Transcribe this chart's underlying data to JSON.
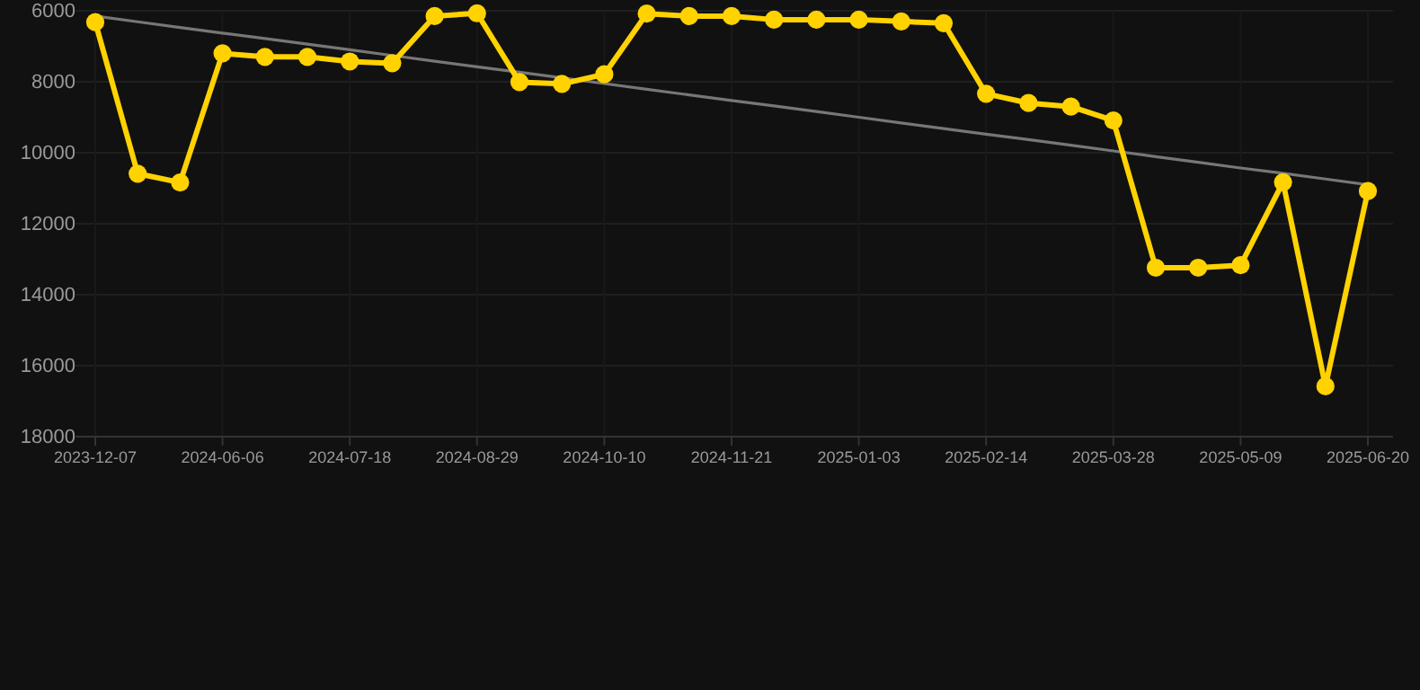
{
  "chart_data": {
    "type": "line",
    "categories": [
      "2023-12-07",
      null,
      null,
      "2024-06-06",
      null,
      null,
      "2024-07-18",
      null,
      null,
      "2024-08-29",
      null,
      null,
      "2024-10-10",
      null,
      null,
      "2024-11-21",
      null,
      null,
      "2025-01-03",
      null,
      null,
      "2025-02-14",
      null,
      null,
      "2025-03-28",
      null,
      null,
      "2025-05-09",
      null,
      null,
      "2025-06-20"
    ],
    "series": [
      {
        "color": "#ffd200",
        "marker": "circle",
        "values": [
          6320,
          10590,
          10840,
          7200,
          7300,
          7300,
          7430,
          7480,
          6150,
          6070,
          8010,
          8060,
          7790,
          6080,
          6150,
          6150,
          6250,
          6250,
          6250,
          6300,
          6350,
          8340,
          8600,
          8700,
          9090,
          13240,
          13240,
          13170,
          10830,
          16580,
          11080
        ]
      },
      {
        "color": "#777777",
        "marker": "none",
        "values": [
          6150,
          6310,
          6470,
          6630,
          6780,
          6940,
          7100,
          7260,
          7420,
          7580,
          7730,
          7890,
          8050,
          8210,
          8370,
          8530,
          8680,
          8840,
          9000,
          9160,
          9320,
          9480,
          9630,
          9790,
          9950,
          10110,
          10270,
          10430,
          10580,
          10740,
          10900
        ]
      }
    ],
    "ylim": [
      18000,
      6000
    ],
    "yticks": [
      6000,
      8000,
      10000,
      12000,
      14000,
      16000,
      18000
    ],
    "grid": true,
    "line_style": "solid"
  }
}
